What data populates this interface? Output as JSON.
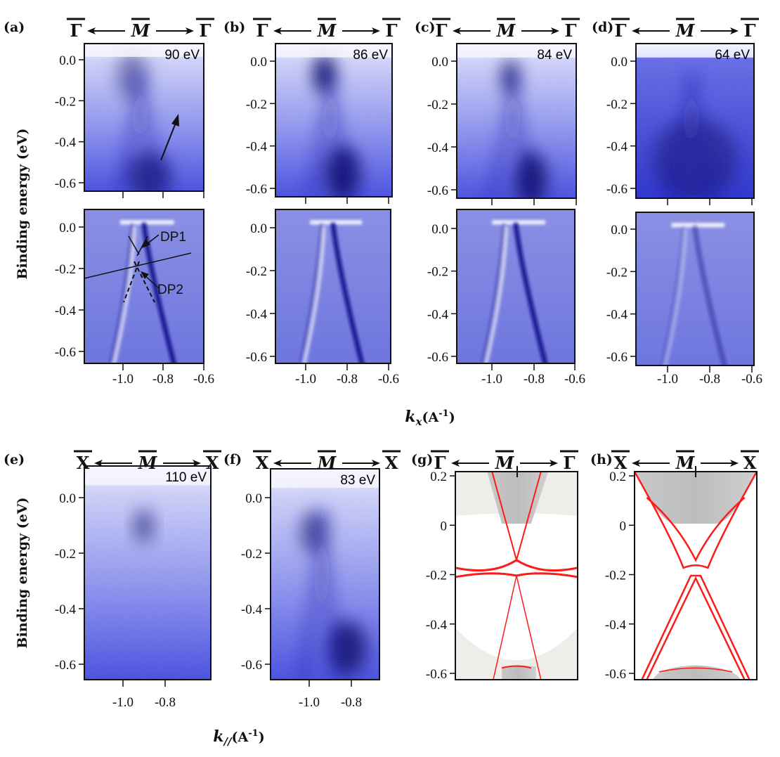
{
  "figure": {
    "ylabel": "Binding energy (eV)",
    "xlabel_kx": "k",
    "xlabel_kx_sub": "x",
    "xlabel_kx_unit": "(A",
    "xlabel_kx_exp": "-1",
    "xlabel_kx_close": ")",
    "xlabel_kpar": "k",
    "xlabel_kpar_sub": "//",
    "xlabel_kpar_unit": "(A",
    "xlabel_kpar_exp": "-1",
    "xlabel_kpar_close": ")",
    "annotations": {
      "dp1": "DP1",
      "dp2": "DP2"
    },
    "colors": {
      "arpes": "#1a1ad0",
      "band": "#ff1a1a",
      "bulk": "#bdbdbd"
    }
  },
  "panels": [
    {
      "id": "a",
      "label": "(a)",
      "path": [
        "Γ",
        "M",
        "Γ"
      ],
      "energy": "90 eV",
      "type": "arpes",
      "yticks": [
        "0.0",
        "-0.2",
        "-0.4",
        "-0.6"
      ]
    },
    {
      "id": "b",
      "label": "(b)",
      "path": [
        "Γ",
        "M",
        "Γ"
      ],
      "energy": "86 eV",
      "type": "arpes",
      "yticks": [
        "0.0",
        "-0.2",
        "-0.4",
        "-0.6"
      ]
    },
    {
      "id": "c",
      "label": "(c)",
      "path": [
        "Γ",
        "M",
        "Γ"
      ],
      "energy": "84 eV",
      "type": "arpes",
      "yticks": [
        "0.0",
        "-0.2",
        "-0.4",
        "-0.6"
      ]
    },
    {
      "id": "d",
      "label": "(d)",
      "path": [
        "Γ",
        "M",
        "Γ"
      ],
      "energy": "64 eV",
      "type": "arpes",
      "yticks": [
        "0.0",
        "-0.2",
        "-0.4",
        "-0.6"
      ]
    },
    {
      "id": "a2",
      "type": "deriv",
      "yticks": [
        "0.0",
        "-0.2",
        "-0.4",
        "-0.6"
      ],
      "xticks": [
        "-1.0",
        "-0.8",
        "-0.6"
      ]
    },
    {
      "id": "b2",
      "type": "deriv",
      "yticks": [
        "0.0",
        "-0.2",
        "-0.4",
        "-0.6"
      ],
      "xticks": [
        "-1.0",
        "-0.8",
        "-0.6"
      ]
    },
    {
      "id": "c2",
      "type": "deriv",
      "yticks": [
        "0.0",
        "-0.2",
        "-0.4",
        "-0.6"
      ],
      "xticks": [
        "-1.0",
        "-0.8",
        "-0.6"
      ]
    },
    {
      "id": "d2",
      "type": "deriv",
      "yticks": [
        "0.0",
        "-0.2",
        "-0.4",
        "-0.6"
      ],
      "xticks": [
        "-1.0",
        "-0.8",
        "-0.6"
      ]
    },
    {
      "id": "e",
      "label": "(e)",
      "path": [
        "X",
        "M",
        "X"
      ],
      "energy": "110 eV",
      "type": "arpes",
      "yticks": [
        "0.0",
        "-0.2",
        "-0.4",
        "-0.6"
      ],
      "xticks": [
        "-1.0",
        "-0.8"
      ]
    },
    {
      "id": "f",
      "label": "(f)",
      "path": [
        "X",
        "M",
        "X"
      ],
      "energy": "83 eV",
      "type": "arpes",
      "yticks": [
        "0.0",
        "-0.2",
        "-0.4",
        "-0.6"
      ],
      "xticks": [
        "-1.0",
        "-0.8"
      ]
    },
    {
      "id": "g",
      "label": "(g)",
      "path": [
        "Γ",
        "M",
        "Γ"
      ],
      "type": "calc",
      "yticks": [
        "0.2",
        "0",
        "-0.2",
        "-0.4",
        "-0.6"
      ]
    },
    {
      "id": "h",
      "label": "(h)",
      "path": [
        "X",
        "M",
        "X"
      ],
      "type": "calc",
      "yticks": [
        "0.2",
        "0",
        "-0.2",
        "-0.4",
        "-0.6"
      ]
    }
  ]
}
